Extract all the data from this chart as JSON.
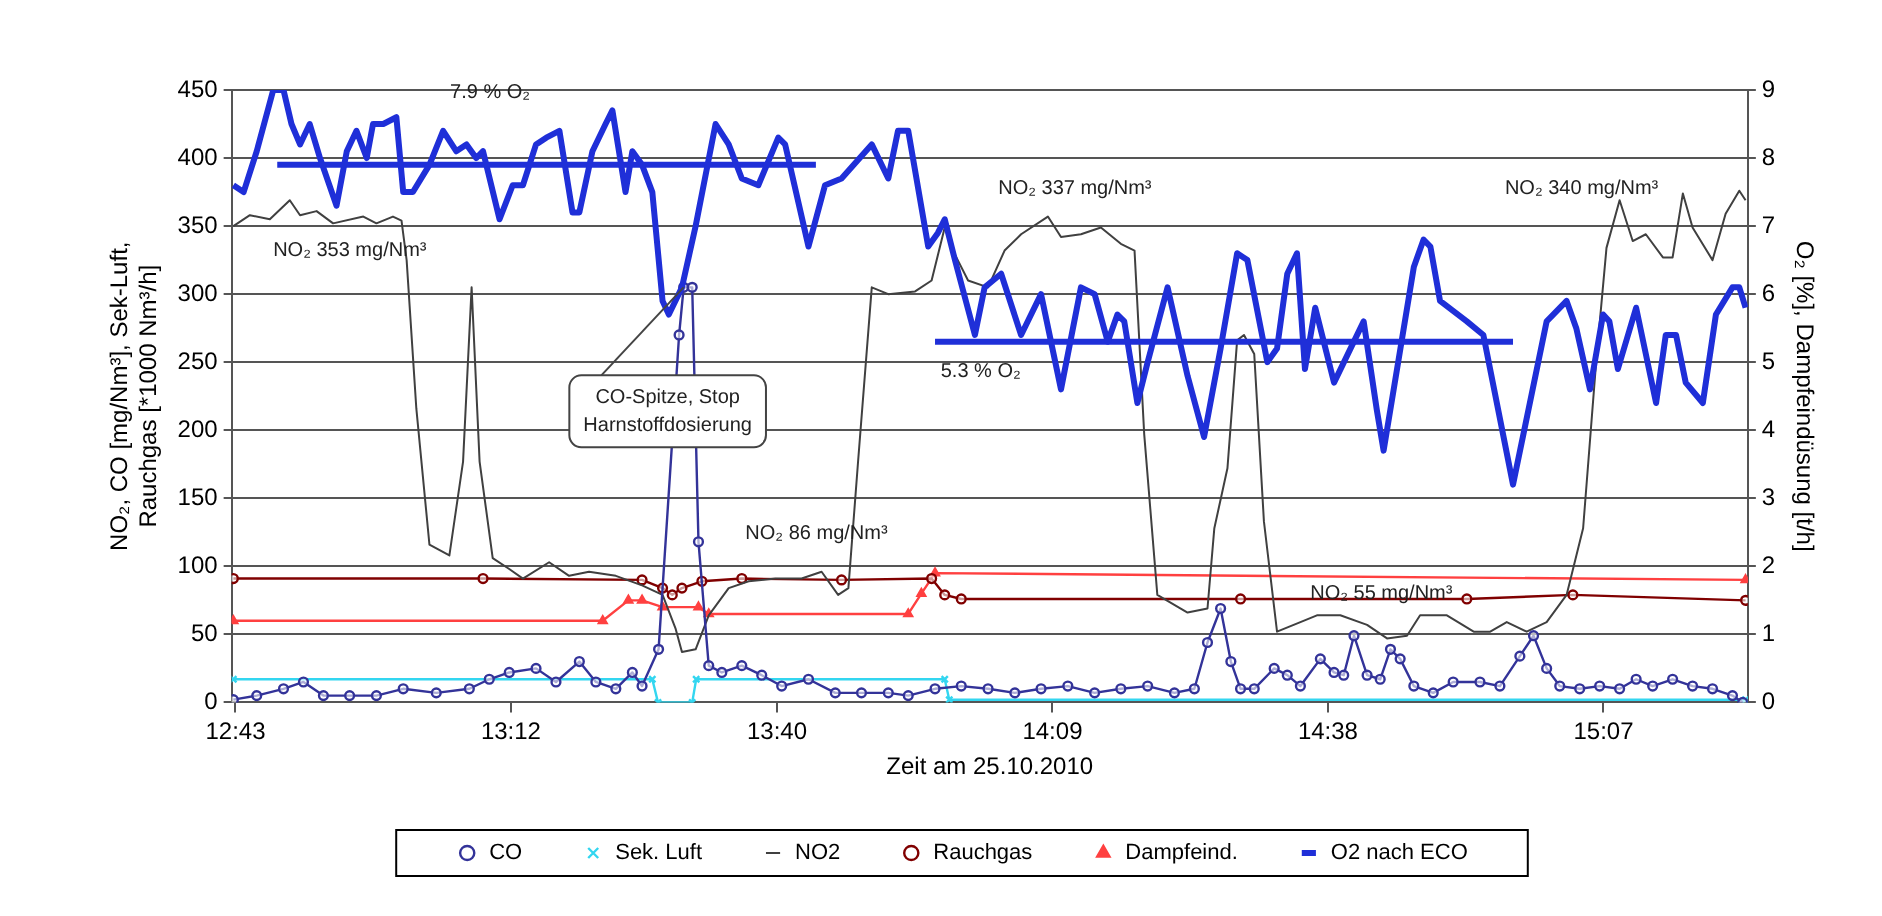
{
  "chart_data": {
    "type": "line",
    "xlabel": "Zeit am 25.10.2010",
    "ylabel": "NO₂, CO [mg/Nm³], Sek-Luft,\nRauchgas [*1000 Nm³/h]",
    "y2label": "O₂ [%], Dampfeindüsung [t/h]",
    "xlim": [
      12.71,
      15.37
    ],
    "xticks": [
      {
        "value": 12.7167,
        "label": "12:43"
      },
      {
        "value": 13.2,
        "label": "13:12"
      },
      {
        "value": 13.6667,
        "label": "13:40"
      },
      {
        "value": 14.15,
        "label": "14:09"
      },
      {
        "value": 14.6333,
        "label": "14:38"
      },
      {
        "value": 15.1167,
        "label": "15:07"
      }
    ],
    "ylim": [
      0,
      450
    ],
    "yticks": [
      0,
      50,
      100,
      150,
      200,
      250,
      300,
      350,
      400,
      450
    ],
    "y2lim": [
      0,
      9
    ],
    "y2ticks": [
      0,
      1,
      2,
      3,
      4,
      5,
      6,
      7,
      8,
      9
    ],
    "grid": "y",
    "legend": "bottom",
    "series": [
      {
        "name": "CO",
        "color": "#333399",
        "marker": "circle",
        "x": [
          12.713,
          12.754,
          12.801,
          12.836,
          12.871,
          12.917,
          12.964,
          13.011,
          13.069,
          13.127,
          13.162,
          13.197,
          13.244,
          13.279,
          13.32,
          13.349,
          13.384,
          13.413,
          13.43,
          13.459,
          13.495,
          13.503,
          13.518,
          13.529,
          13.547,
          13.57,
          13.605,
          13.64,
          13.675,
          13.722,
          13.769,
          13.815,
          13.862,
          13.897,
          13.944,
          13.99,
          14.037,
          14.084,
          14.13,
          14.177,
          14.224,
          14.27,
          14.317,
          14.364,
          14.399,
          14.422,
          14.445,
          14.463,
          14.48,
          14.504,
          14.539,
          14.562,
          14.585,
          14.62,
          14.644,
          14.661,
          14.679,
          14.702,
          14.725,
          14.743,
          14.76,
          14.784,
          14.818,
          14.853,
          14.9,
          14.935,
          14.97,
          14.994,
          15.017,
          15.04,
          15.075,
          15.11,
          15.145,
          15.174,
          15.203,
          15.238,
          15.273,
          15.308,
          15.343,
          15.361
        ],
        "values": [
          2,
          5,
          10,
          15,
          5,
          5,
          5,
          10,
          7,
          10,
          17,
          22,
          25,
          15,
          30,
          15,
          10,
          22,
          12,
          39,
          270,
          305,
          305,
          118,
          27,
          22,
          27,
          20,
          12,
          17,
          7,
          7,
          7,
          5,
          10,
          12,
          10,
          7,
          10,
          12,
          7,
          10,
          12,
          7,
          10,
          44,
          69,
          30,
          10,
          10,
          25,
          20,
          12,
          32,
          22,
          20,
          49,
          20,
          17,
          39,
          32,
          12,
          7,
          15,
          15,
          12,
          34,
          49,
          25,
          12,
          10,
          12,
          10,
          17,
          12,
          17,
          12,
          10,
          5,
          0
        ]
      },
      {
        "name": "Sek. Luft",
        "color": "#33d6f0",
        "marker": "cross",
        "x": [
          12.713,
          13.448,
          13.458,
          13.518,
          13.525,
          13.961,
          13.969,
          15.366
        ],
        "values": [
          17,
          17,
          0,
          0,
          17,
          17,
          2,
          2
        ]
      },
      {
        "name": "NO2",
        "color": "#404040",
        "marker": "none",
        "x": [
          12.713,
          12.742,
          12.777,
          12.812,
          12.83,
          12.859,
          12.888,
          12.941,
          12.964,
          12.993,
          13.008,
          13.017,
          13.034,
          13.057,
          13.092,
          13.116,
          13.131,
          13.145,
          13.168,
          13.197,
          13.221,
          13.267,
          13.302,
          13.337,
          13.384,
          13.43,
          13.466,
          13.489,
          13.5,
          13.524,
          13.547,
          13.582,
          13.617,
          13.664,
          13.71,
          13.745,
          13.774,
          13.792,
          13.809,
          13.833,
          13.862,
          13.909,
          13.938,
          13.961,
          13.979,
          14.002,
          14.037,
          14.066,
          14.095,
          14.142,
          14.165,
          14.2,
          14.235,
          14.27,
          14.294,
          14.311,
          14.334,
          14.387,
          14.422,
          14.434,
          14.457,
          14.474,
          14.486,
          14.504,
          14.521,
          14.544,
          14.585,
          14.614,
          14.655,
          14.702,
          14.737,
          14.772,
          14.795,
          14.842,
          14.889,
          14.918,
          14.947,
          14.982,
          15.017,
          15.052,
          15.081,
          15.104,
          15.122,
          15.145,
          15.168,
          15.191,
          15.221,
          15.238,
          15.256,
          15.273,
          15.308,
          15.331,
          15.355,
          15.366
        ],
        "values": [
          350,
          358,
          355,
          369,
          358,
          361,
          352,
          357,
          352,
          357,
          354,
          325,
          216,
          116,
          108,
          177,
          305,
          177,
          106,
          98,
          91,
          103,
          93,
          96,
          93,
          86,
          79,
          54,
          37,
          39,
          64,
          84,
          89,
          91,
          91,
          96,
          79,
          84,
          177,
          305,
          300,
          302,
          310,
          349,
          329,
          310,
          305,
          332,
          344,
          357,
          342,
          344,
          349,
          337,
          332,
          197,
          79,
          66,
          69,
          128,
          172,
          266,
          270,
          256,
          133,
          52,
          59,
          64,
          64,
          57,
          47,
          49,
          64,
          64,
          52,
          52,
          59,
          52,
          59,
          79,
          128,
          251,
          334,
          369,
          339,
          344,
          327,
          327,
          374,
          349,
          325,
          359,
          376,
          369
        ]
      },
      {
        "name": "Rauchgas",
        "color": "#800000",
        "marker": "circle",
        "x": [
          12.713,
          13.151,
          13.43,
          13.466,
          13.483,
          13.5,
          13.535,
          13.605,
          13.78,
          13.938,
          13.961,
          13.99,
          14.48,
          14.877,
          15.063,
          15.366
        ],
        "values": [
          91,
          91,
          90,
          84,
          79,
          84,
          89,
          91,
          90,
          91,
          79,
          76,
          76,
          76,
          79,
          75
        ]
      },
      {
        "name": "Dampfeind.",
        "color": "#ff4040",
        "marker": "triangle",
        "axis": "y2",
        "x": [
          12.713,
          13.361,
          13.406,
          13.43,
          13.466,
          13.529,
          13.547,
          13.897,
          13.92,
          13.944,
          15.366
        ],
        "values": [
          1.2,
          1.2,
          1.5,
          1.5,
          1.4,
          1.4,
          1.3,
          1.3,
          1.6,
          1.9,
          1.8
        ]
      },
      {
        "name": "O2 nach ECO",
        "color": "#1f2fd8",
        "marker": "none",
        "axis": "y2",
        "x": [
          12.713,
          12.731,
          12.754,
          12.783,
          12.801,
          12.815,
          12.83,
          12.847,
          12.865,
          12.894,
          12.912,
          12.929,
          12.947,
          12.958,
          12.976,
          12.999,
          13.011,
          13.028,
          13.057,
          13.081,
          13.104,
          13.122,
          13.139,
          13.151,
          13.18,
          13.203,
          13.221,
          13.244,
          13.262,
          13.285,
          13.308,
          13.32,
          13.343,
          13.366,
          13.378,
          13.401,
          13.413,
          13.43,
          13.448,
          13.466,
          13.477,
          13.5,
          13.524,
          13.559,
          13.582,
          13.605,
          13.634,
          13.669,
          13.681,
          13.722,
          13.751,
          13.78,
          13.833,
          13.862,
          13.879,
          13.897,
          13.932,
          13.949,
          13.961,
          13.979,
          14.014,
          14.031,
          14.06,
          14.095,
          14.13,
          14.165,
          14.2,
          14.224,
          14.247,
          14.264,
          14.276,
          14.299,
          14.317,
          14.352,
          14.387,
          14.416,
          14.445,
          14.474,
          14.492,
          14.527,
          14.544,
          14.562,
          14.579,
          14.593,
          14.611,
          14.644,
          14.696,
          14.719,
          14.731,
          14.784,
          14.801,
          14.813,
          14.83,
          14.877,
          14.906,
          14.958,
          15.017,
          15.052,
          15.069,
          15.093,
          15.116,
          15.127,
          15.142,
          15.174,
          15.209,
          15.226,
          15.244,
          15.261,
          15.291,
          15.314,
          15.343,
          15.355,
          15.366
        ],
        "values": [
          7.6,
          7.5,
          8.1,
          9.0,
          9.0,
          8.5,
          8.2,
          8.5,
          8.0,
          7.3,
          8.1,
          8.4,
          8.0,
          8.5,
          8.5,
          8.6,
          7.5,
          7.5,
          7.9,
          8.4,
          8.1,
          8.2,
          8.0,
          8.1,
          7.1,
          7.6,
          7.6,
          8.2,
          8.3,
          8.4,
          7.2,
          7.2,
          8.1,
          8.5,
          8.7,
          7.5,
          8.1,
          7.9,
          7.5,
          5.9,
          5.7,
          6.1,
          7.0,
          8.5,
          8.2,
          7.7,
          7.6,
          8.3,
          8.2,
          6.7,
          7.6,
          7.7,
          8.2,
          7.7,
          8.4,
          8.4,
          6.7,
          6.9,
          7.1,
          6.5,
          5.4,
          6.1,
          6.3,
          5.4,
          6.0,
          4.6,
          6.1,
          6.0,
          5.3,
          5.7,
          5.6,
          4.4,
          5.0,
          6.1,
          4.8,
          3.9,
          5.2,
          6.6,
          6.5,
          5.0,
          5.2,
          6.3,
          6.6,
          4.9,
          5.8,
          4.7,
          5.6,
          4.3,
          3.7,
          6.4,
          6.8,
          6.7,
          5.9,
          5.6,
          5.4,
          3.2,
          5.6,
          5.9,
          5.5,
          4.6,
          5.7,
          5.6,
          4.9,
          5.8,
          4.4,
          5.4,
          5.4,
          4.7,
          4.4,
          5.7,
          6.1,
          6.1,
          5.8
        ]
      },
      {
        "color": "#1f2fd8",
        "marker": "none",
        "axis": "y2",
        "x": [
          12.79,
          13.735
        ],
        "values": [
          7.9,
          7.9
        ]
      },
      {
        "color": "#1f2fd8",
        "marker": "none",
        "axis": "y2",
        "x": [
          13.944,
          14.958
        ],
        "values": [
          5.3,
          5.3
        ]
      }
    ],
    "annotations": [
      "7.9 % O₂",
      "NO₂ 353 mg/Nm³",
      "NO₂ 337 mg/Nm³",
      "NO₂ 340 mg/Nm³",
      "NO₂ 86 mg/Nm³",
      "NO₂ 55 mg/Nm³",
      "5.3 % O₂",
      {
        "text": "CO-Spitze, Stop\nHarnstoffdosierung",
        "x": 13.503,
        "y": 305
      }
    ]
  }
}
